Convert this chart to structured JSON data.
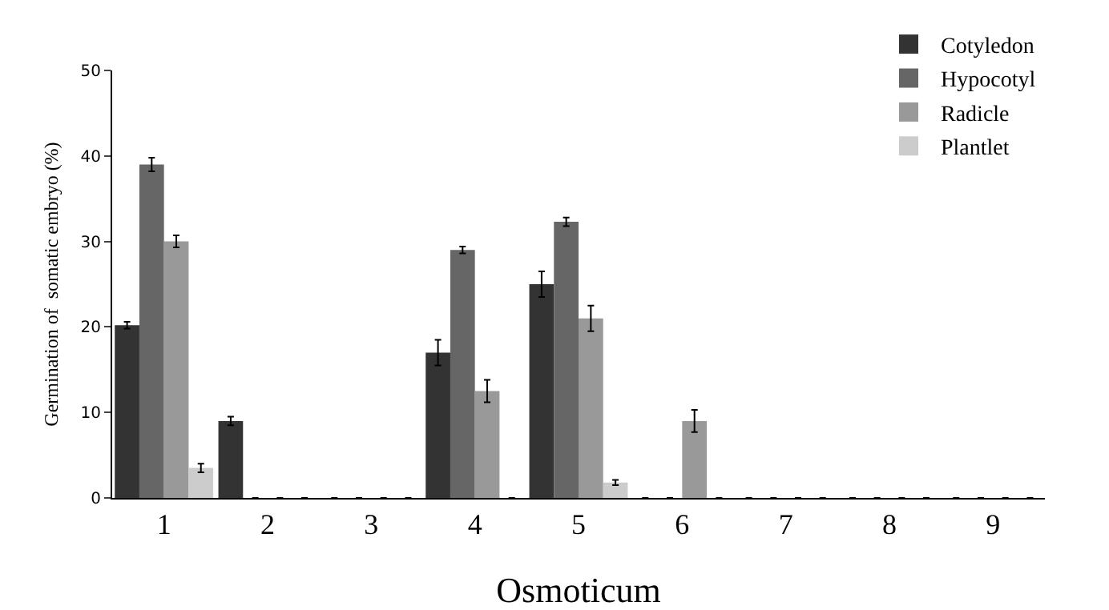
{
  "chart_data": {
    "type": "bar",
    "xlabel": "Osmoticum",
    "ylabel": "Germination of  somatic embryo (%)",
    "categories": [
      "1",
      "2",
      "3",
      "4",
      "5",
      "6",
      "7",
      "8",
      "9"
    ],
    "series": [
      {
        "name": "Cotyledon",
        "color": "#333333",
        "values": [
          20.2,
          9,
          0,
          17,
          25,
          0,
          0,
          0,
          0
        ],
        "errors": [
          0.4,
          0.5,
          null,
          1.5,
          1.5,
          null,
          null,
          null,
          null
        ]
      },
      {
        "name": "Hypocotyl",
        "color": "#666666",
        "values": [
          39,
          0,
          0,
          29,
          32.3,
          0,
          0,
          0,
          0
        ],
        "errors": [
          0.8,
          null,
          null,
          0.4,
          0.5,
          null,
          null,
          null,
          null
        ]
      },
      {
        "name": "Radicle",
        "color": "#999999",
        "values": [
          30,
          0,
          0,
          12.5,
          21,
          9,
          0,
          0,
          0
        ],
        "errors": [
          0.7,
          null,
          null,
          1.3,
          1.5,
          1.3,
          null,
          null,
          null
        ]
      },
      {
        "name": "Plantlet",
        "color": "#cccccc",
        "values": [
          3.5,
          0,
          0,
          0,
          1.8,
          0,
          0,
          0,
          0
        ],
        "errors": [
          0.5,
          null,
          null,
          null,
          0.3,
          null,
          null,
          null,
          null
        ]
      }
    ],
    "ylim": [
      0,
      50
    ],
    "yticks": [
      0,
      10,
      20,
      30,
      40,
      50
    ],
    "grid": false,
    "legend": "top right"
  }
}
